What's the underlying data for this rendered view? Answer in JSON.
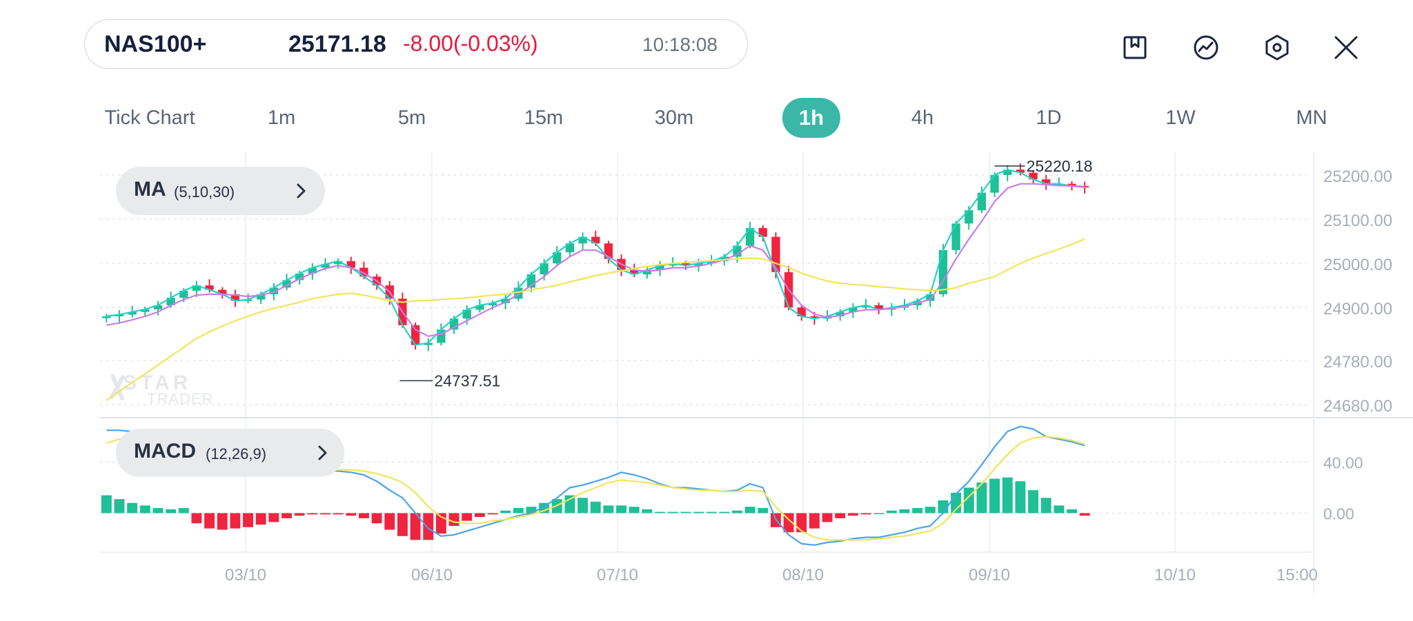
{
  "quote": {
    "symbol": "NAS100+",
    "price": "25171.18",
    "change": "-8.00(-0.03%)",
    "time": "10:18:08"
  },
  "toolbar": [
    {
      "name": "bookmark-chart-button",
      "icon": "bookmark-icon"
    },
    {
      "name": "indicators-button",
      "icon": "trend-line-icon"
    },
    {
      "name": "settings-button",
      "icon": "hexagon-settings-icon"
    },
    {
      "name": "close-button",
      "icon": "close-icon"
    }
  ],
  "timeframes": [
    "Tick Chart",
    "1m",
    "5m",
    "15m",
    "30m",
    "1h",
    "4h",
    "1D",
    "1W",
    "MN"
  ],
  "active_timeframe": "1h",
  "indicators": {
    "ma": {
      "name": "MA",
      "params": "(5,10,30)"
    },
    "macd": {
      "name": "MACD",
      "params": "(12,26,9)"
    }
  },
  "watermark": {
    "line1": "STAR",
    "line2": "TRADER"
  },
  "colors": {
    "up": "#1fbf97",
    "down": "#f0243f",
    "accent": "#3bb7a8",
    "ma5": "#22d3c5",
    "ma10": "#c77dea",
    "ma30": "#f2e45b",
    "dif": "#4aa3ea",
    "dea": "#f2e45b"
  },
  "chart_data": [
    {
      "type": "candlestick",
      "title": "",
      "y_ticks": [
        "25200.00",
        "25100.00",
        "25000.00",
        "24900.00",
        "24780.00",
        "24680.00"
      ],
      "ylim": [
        24660,
        25245
      ],
      "x_ticks": [
        "03/10",
        "06/10",
        "07/10",
        "08/10",
        "09/10",
        "10/10",
        "15:00"
      ],
      "high_label": "25220.18",
      "low_label": "24737.51",
      "series": [
        {
          "name": "MA5",
          "values": [
            24880,
            24884,
            24890,
            24896,
            24905,
            24922,
            24938,
            24950,
            24940,
            24930,
            24915,
            24918,
            24930,
            24945,
            24962,
            24977,
            24990,
            24998,
            25005,
            24990,
            24970,
            24950,
            24920,
            24860,
            24815,
            24820,
            24850,
            24875,
            24895,
            24905,
            24910,
            24920,
            24945,
            24975,
            25000,
            25025,
            25045,
            25060,
            25045,
            25010,
            24985,
            24975,
            24985,
            24995,
            25000,
            24995,
            25000,
            25005,
            25015,
            25040,
            25080,
            25060,
            24980,
            24900,
            24880,
            24875,
            24880,
            24890,
            24900,
            24905,
            24895,
            24900,
            24905,
            24915,
            24930,
            25030,
            25090,
            25120,
            25160,
            25200,
            25212,
            25205,
            25190,
            25180,
            25180,
            25175,
            25172
          ]
        },
        {
          "name": "MA10",
          "values": [
            24860,
            24865,
            24872,
            24880,
            24890,
            24905,
            24918,
            24928,
            24930,
            24930,
            24928,
            24925,
            24928,
            24935,
            24950,
            24965,
            24978,
            24988,
            24995,
            24990,
            24978,
            24960,
            24935,
            24890,
            24850,
            24835,
            24840,
            24855,
            24870,
            24885,
            24900,
            24912,
            24930,
            24950,
            24970,
            24995,
            25015,
            25030,
            25030,
            25015,
            24998,
            24985,
            24982,
            24985,
            24990,
            24990,
            24994,
            25000,
            25008,
            25020,
            25040,
            25030,
            24990,
            24940,
            24905,
            24885,
            24878,
            24882,
            24890,
            24895,
            24895,
            24898,
            24902,
            24910,
            24918,
            24960,
            25010,
            25055,
            25095,
            25140,
            25170,
            25180,
            25180,
            25178,
            25176,
            25175,
            25174
          ]
        },
        {
          "name": "MA30",
          "values": [
            24690,
            24710,
            24730,
            24750,
            24770,
            24790,
            24810,
            24830,
            24845,
            24858,
            24870,
            24880,
            24890,
            24898,
            24905,
            24912,
            24920,
            24925,
            24930,
            24932,
            24928,
            24922,
            24915,
            24912,
            24915,
            24916,
            24918,
            24920,
            24922,
            24925,
            24928,
            24930,
            24935,
            24940,
            24945,
            24950,
            24958,
            24965,
            24972,
            24978,
            24983,
            24988,
            24993,
            24997,
            25000,
            25002,
            25004,
            25006,
            25008,
            25010,
            25012,
            25010,
            25000,
            24990,
            24978,
            24968,
            24960,
            24955,
            24952,
            24950,
            24947,
            24945,
            24942,
            24940,
            24938,
            24940,
            24945,
            24955,
            24962,
            24970,
            24985,
            25000,
            25012,
            25022,
            25032,
            25043,
            25055
          ]
        }
      ]
    },
    {
      "type": "bar+line",
      "title": "",
      "y_ticks": [
        "40.00",
        "0.00"
      ],
      "ylim": [
        -30,
        70
      ],
      "series": [
        {
          "name": "DIF",
          "values": [
            65,
            65,
            64,
            62,
            61,
            60,
            62,
            50,
            42,
            37,
            35,
            34,
            34,
            34,
            33,
            33,
            33,
            33,
            33,
            32,
            30,
            25,
            18,
            12,
            0,
            -12,
            -18,
            -17,
            -14,
            -11,
            -8,
            -5,
            -2,
            0,
            5,
            12,
            20,
            22,
            25,
            28,
            32,
            30,
            27,
            23,
            20,
            20,
            19,
            18,
            17,
            18,
            23,
            20,
            -5,
            -17,
            -24,
            -25,
            -23,
            -22,
            -20,
            -19,
            -19,
            -17,
            -15,
            -12,
            -10,
            0,
            15,
            25,
            38,
            52,
            64,
            68,
            66,
            60,
            58,
            56,
            53
          ]
        },
        {
          "name": "DEA",
          "values": [
            55,
            58,
            60,
            61,
            61,
            61,
            61,
            58,
            54,
            50,
            46,
            43,
            40,
            38,
            36,
            35,
            35,
            34,
            34,
            34,
            33,
            31,
            28,
            24,
            16,
            5,
            -3,
            -7,
            -8,
            -8,
            -6,
            -5,
            -3,
            -1,
            2,
            6,
            11,
            16,
            20,
            24,
            26,
            25,
            24,
            22,
            20,
            19,
            18,
            18,
            17,
            17,
            18,
            17,
            5,
            -5,
            -14,
            -19,
            -21,
            -21,
            -21,
            -21,
            -20,
            -19,
            -18,
            -16,
            -14,
            -8,
            3,
            13,
            23,
            35,
            46,
            55,
            59,
            60,
            59,
            57,
            54
          ]
        },
        {
          "name": "Histogram",
          "values": [
            14,
            11,
            8,
            6,
            4,
            3,
            4,
            -8,
            -12,
            -13,
            -12,
            -11,
            -9,
            -7,
            -4,
            -2,
            -1,
            -1,
            -1,
            -2,
            -4,
            -8,
            -13,
            -18,
            -21,
            -21,
            -16,
            -10,
            -6,
            -3,
            -1,
            2,
            4,
            5,
            8,
            11,
            14,
            12,
            9,
            6,
            6,
            5,
            3,
            1,
            1,
            1,
            1,
            1,
            1,
            2,
            5,
            4,
            -11,
            -15,
            -15,
            -12,
            -7,
            -4,
            -2,
            -1,
            0,
            2,
            3,
            4,
            5,
            10,
            16,
            20,
            24,
            27,
            28,
            25,
            18,
            12,
            6,
            3,
            -2
          ]
        }
      ]
    }
  ]
}
